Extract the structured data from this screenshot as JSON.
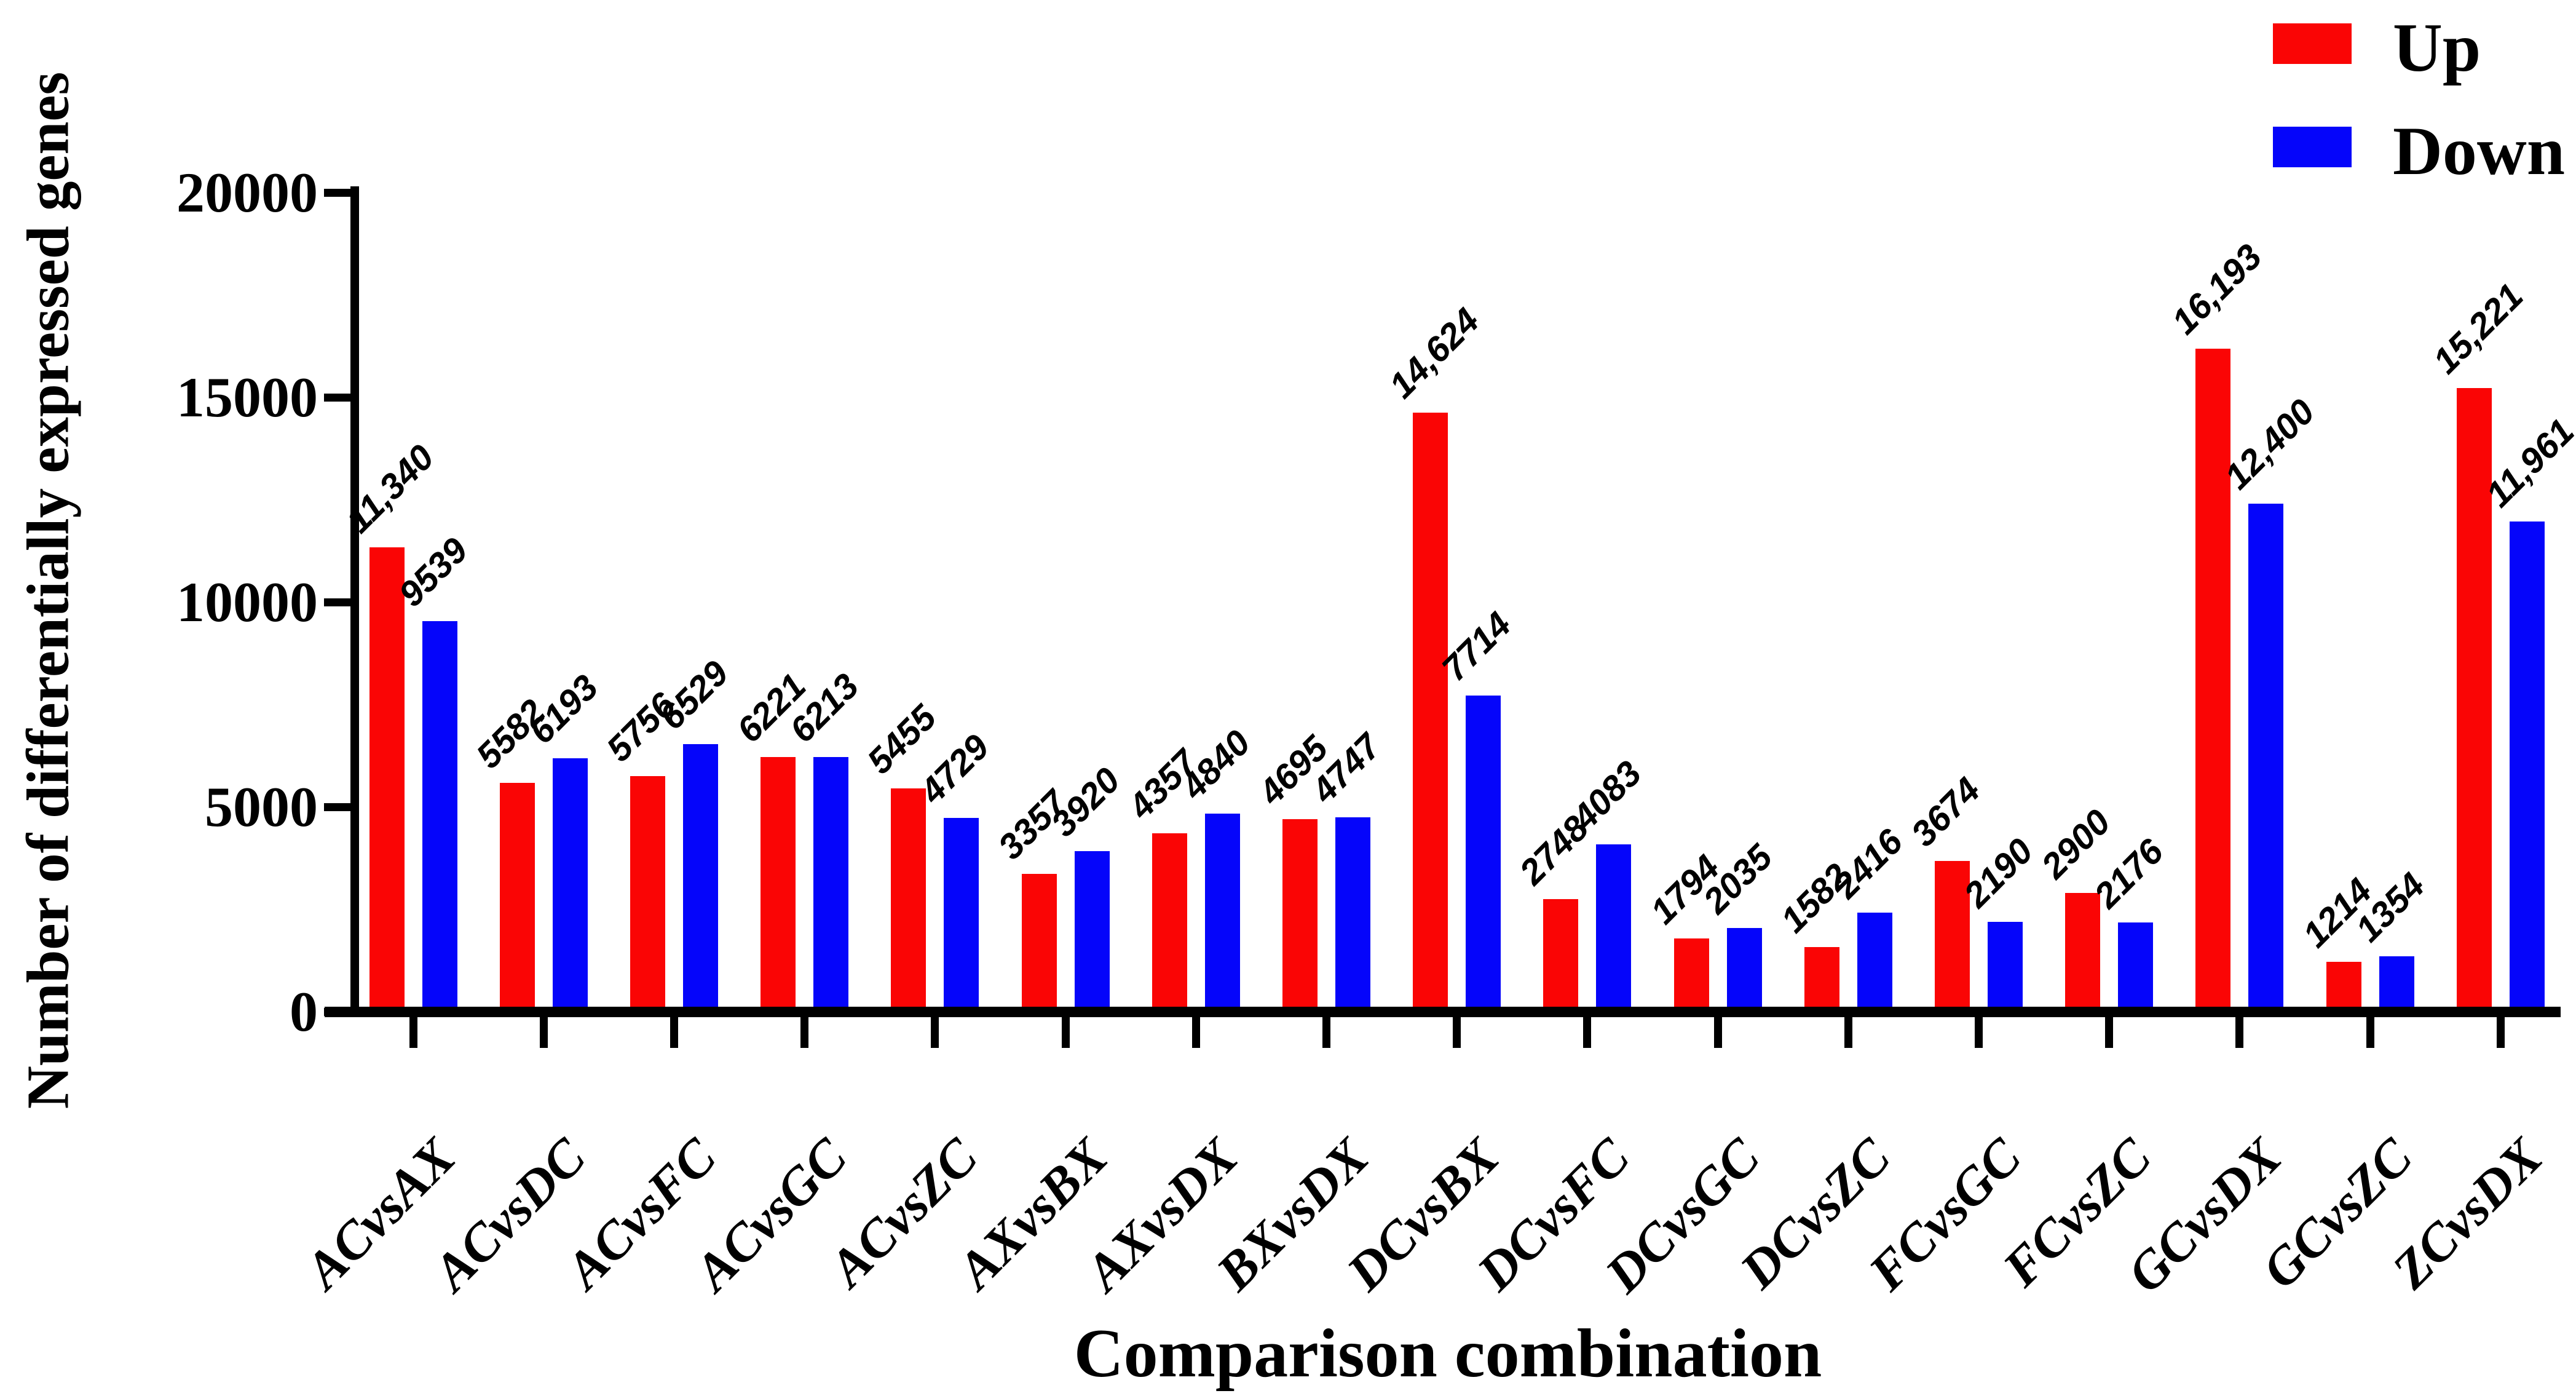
{
  "figure": {
    "x_axis_title": "Comparison combination",
    "y_axis_title": "Number of differentially expressed genes"
  },
  "legend": {
    "position": "top-right",
    "items": [
      {
        "label": "Up",
        "color": "#fa0505"
      },
      {
        "label": "Down",
        "color": "#0505fa"
      }
    ]
  },
  "chart_data": {
    "type": "bar",
    "title": "",
    "xlabel": "Comparison combination",
    "ylabel": "Number of differentially expressed genes",
    "categories": [
      "ACvsAX",
      "ACvsDC",
      "ACvsFC",
      "ACvsGC",
      "ACvsZC",
      "AXvsBX",
      "AXvsDX",
      "BXvsDX",
      "DCvsBX",
      "DCvsFC",
      "DCvsGC",
      "DCvsZC",
      "FCvsGC",
      "FCvsZC",
      "GCvsDX",
      "GCvsZC",
      "ZCvsDX"
    ],
    "series": [
      {
        "name": "Up",
        "color": "#fa0505",
        "values": [
          11340,
          5582,
          5756,
          6221,
          5455,
          3357,
          4357,
          4695,
          14624,
          2748,
          1794,
          1582,
          3674,
          2900,
          16193,
          1214,
          15221
        ],
        "value_labels": [
          "11,340",
          "5582",
          "5756",
          "6221",
          "5455",
          "3357",
          "4357",
          "4695",
          "14,624",
          "2748",
          "1794",
          "1582",
          "3674",
          "2900",
          "16,193",
          "1214",
          "15,221"
        ]
      },
      {
        "name": "Down",
        "color": "#0505fa",
        "values": [
          9539,
          6193,
          6529,
          6213,
          4729,
          3920,
          4840,
          4747,
          7714,
          4083,
          2035,
          2416,
          2190,
          2176,
          12400,
          1354,
          11961
        ],
        "value_labels": [
          "9539",
          "6193",
          "6529",
          "6213",
          "4729",
          "3920",
          "4840",
          "4747",
          "7714",
          "4083",
          "2035",
          "2416",
          "2190",
          "2176",
          "12,400",
          "1354",
          "11,961"
        ]
      }
    ],
    "ylim": [
      0,
      20000
    ],
    "yticks": [
      0,
      5000,
      10000,
      15000,
      20000
    ],
    "ytick_labels": [
      "0",
      "5000",
      "10000",
      "15000",
      "20000"
    ],
    "bar_value_label_rotation_deg": 45,
    "x_tick_label_rotation_deg": 45,
    "legend_position": "top-right",
    "grid": false
  }
}
